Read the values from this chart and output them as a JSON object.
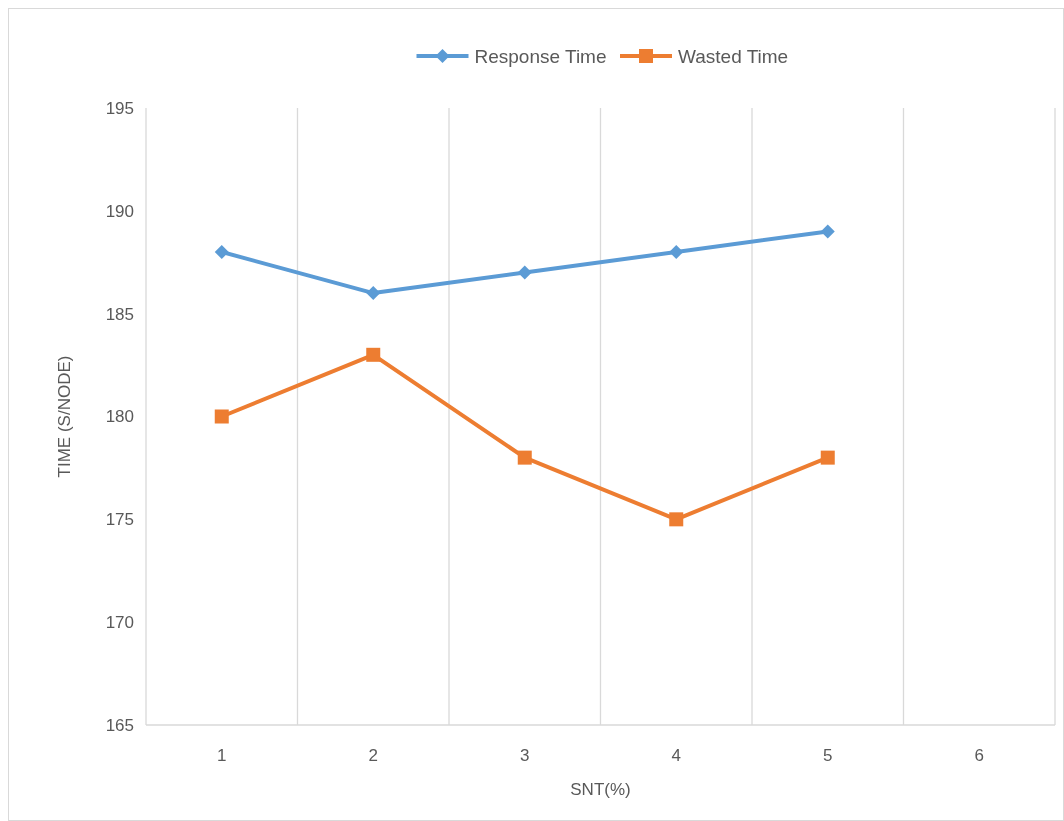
{
  "chart_data": {
    "type": "line",
    "xlabel": "SNT(%)",
    "ylabel": "TIME (S/NODE)",
    "categories": [
      "1",
      "2",
      "3",
      "4",
      "5",
      "6"
    ],
    "series": [
      {
        "name": "Response Time",
        "color": "#5b9bd5",
        "marker": "diamond",
        "values": [
          188,
          186,
          187,
          188,
          189,
          null
        ]
      },
      {
        "name": "Wasted Time",
        "color": "#ed7d31",
        "marker": "square",
        "values": [
          180,
          183,
          178,
          175,
          178,
          null
        ]
      }
    ],
    "ylim": [
      165,
      195
    ],
    "yticks": [
      165,
      170,
      175,
      180,
      185,
      190,
      195
    ],
    "grid": "x",
    "legend": "top"
  }
}
